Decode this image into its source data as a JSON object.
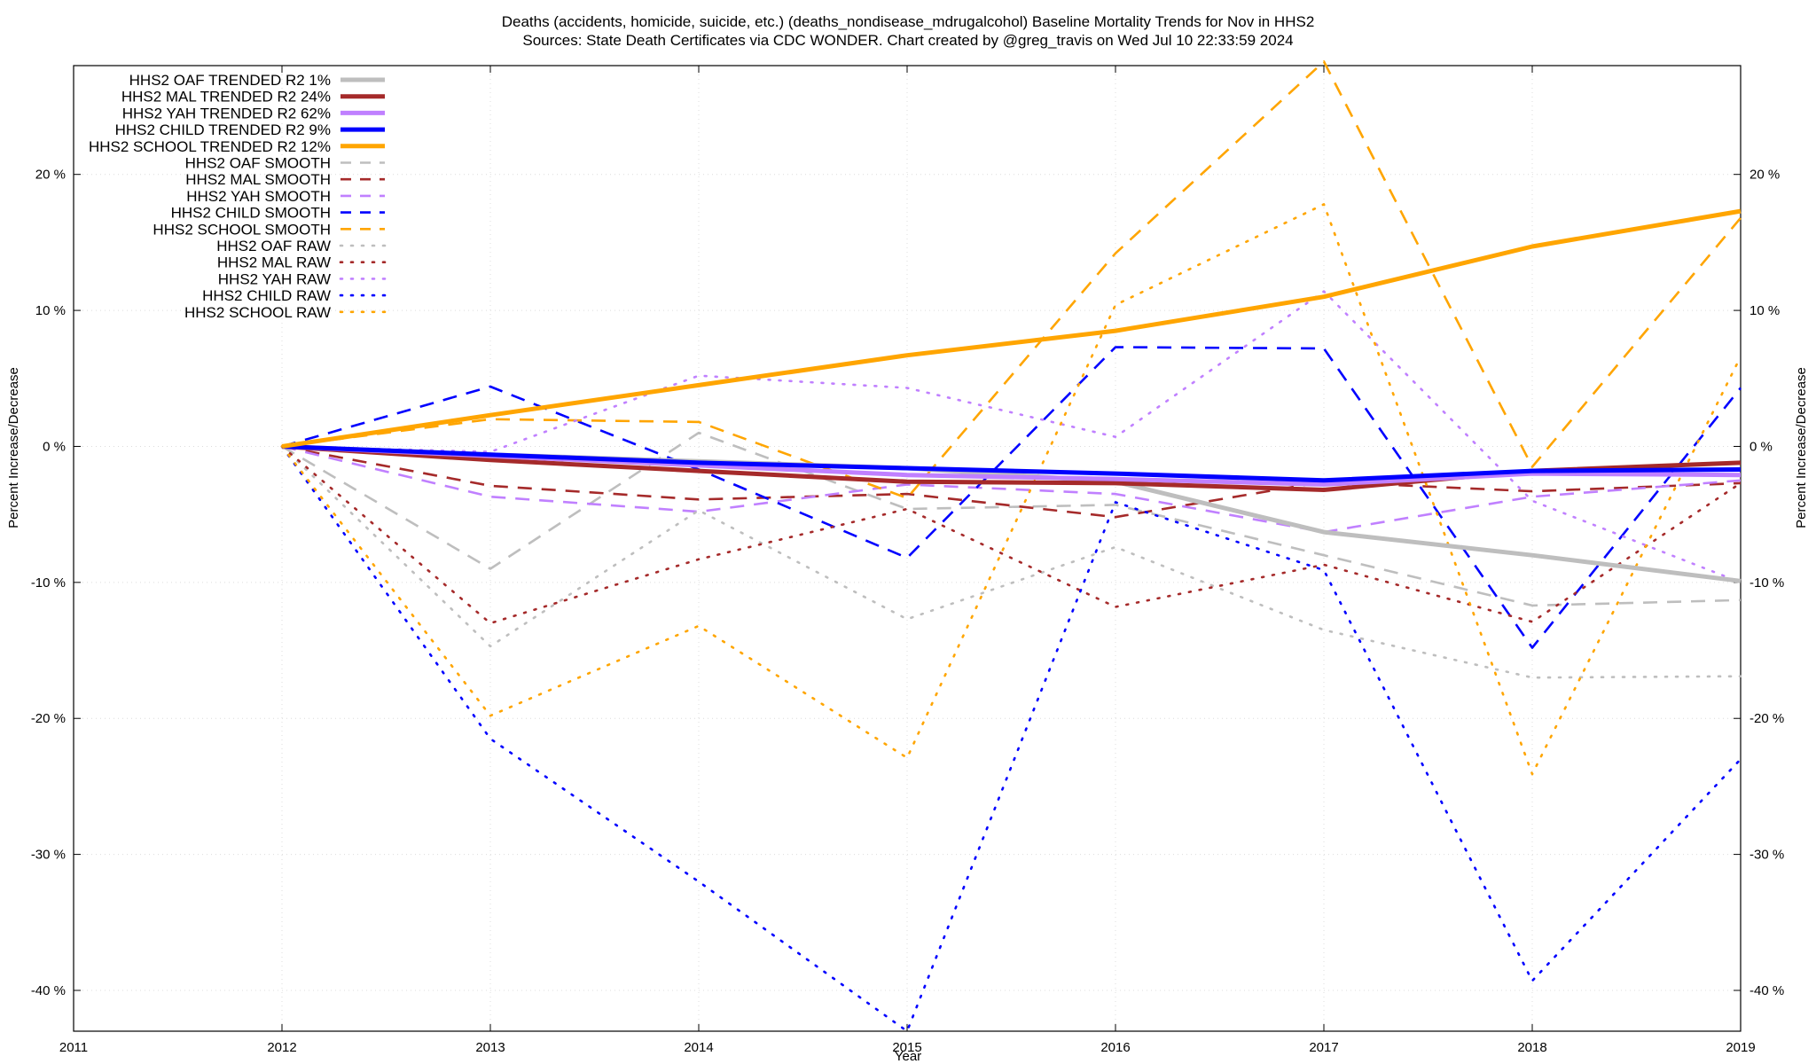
{
  "title_line1": "Deaths (accidents, homicide, suicide, etc.) (deaths_nondisease_mdrugalcohol)  Baseline Mortality Trends for Nov in HHS2",
  "title_line2": "Sources: State Death Certificates via CDC WONDER.                Chart created by @greg_travis on Wed Jul 10 22:33:59 2024",
  "chart_data": {
    "type": "line",
    "title": "Deaths (accidents, homicide, suicide, etc.) (deaths_nondisease_mdrugalcohol)  Baseline Mortality Trends for Nov in HHS2",
    "subtitle": "Sources: State Death Certificates via CDC WONDER.                Chart created by @greg_travis on Wed Jul 10 22:33:59 2024",
    "xlabel": "Year",
    "ylabel": "Percent Increase/Decrease",
    "y2label": "Percent Increase/Decrease",
    "xlim": [
      2011,
      2019
    ],
    "ylim": [
      -43,
      28
    ],
    "xticks": [
      2011,
      2012,
      2013,
      2014,
      2015,
      2016,
      2017,
      2018,
      2019
    ],
    "yticks": [
      -40,
      -30,
      -20,
      -10,
      0,
      10,
      20
    ],
    "ytick_suffix": " %",
    "grid": true,
    "legend_position": "top-left",
    "series": [
      {
        "name": "HHS2 OAF TRENDED R2   1%",
        "style": "solid",
        "color": "#bebebe",
        "x": [
          2012,
          2013,
          2014,
          2015,
          2016,
          2017,
          2018,
          2019
        ],
        "y": [
          0,
          -0.6,
          -1.1,
          -1.6,
          -2.6,
          -6.3,
          -8.0,
          -9.9
        ]
      },
      {
        "name": "HHS2 MAL TRENDED R2  24%",
        "style": "solid",
        "color": "#a52a2a",
        "x": [
          2012,
          2013,
          2014,
          2015,
          2016,
          2017,
          2018,
          2019
        ],
        "y": [
          0,
          -1.0,
          -1.8,
          -2.6,
          -2.7,
          -3.2,
          -1.8,
          -1.2
        ]
      },
      {
        "name": "HHS2 YAH TRENDED R2  62%",
        "style": "solid",
        "color": "#c080ff",
        "x": [
          2012,
          2013,
          2014,
          2015,
          2016,
          2017,
          2018,
          2019
        ],
        "y": [
          0,
          -0.7,
          -1.4,
          -2.1,
          -2.4,
          -2.8,
          -2.0,
          -2.1
        ]
      },
      {
        "name": "HHS2 CHILD TRENDED R2   9%",
        "style": "solid",
        "color": "#0000ff",
        "x": [
          2012,
          2013,
          2014,
          2015,
          2016,
          2017,
          2018,
          2019
        ],
        "y": [
          0,
          -0.6,
          -1.2,
          -1.6,
          -2.0,
          -2.5,
          -1.8,
          -1.7
        ]
      },
      {
        "name": "HHS2 SCHOOL TRENDED R2  12%",
        "style": "solid",
        "color": "#ffa500",
        "x": [
          2012,
          2013,
          2014,
          2015,
          2016,
          2017,
          2018,
          2019
        ],
        "y": [
          0,
          2.3,
          4.5,
          6.7,
          8.5,
          11.0,
          14.7,
          17.3
        ]
      },
      {
        "name": "HHS2 OAF SMOOTH",
        "style": "dashed",
        "color": "#bebebe",
        "x": [
          2012,
          2013,
          2014,
          2015,
          2016,
          2017,
          2018,
          2019
        ],
        "y": [
          0,
          -9.0,
          1.0,
          -4.6,
          -4.3,
          -8.0,
          -11.7,
          -11.3
        ]
      },
      {
        "name": "HHS2 MAL SMOOTH",
        "style": "dashed",
        "color": "#a52a2a",
        "x": [
          2012,
          2013,
          2014,
          2015,
          2016,
          2017,
          2018,
          2019
        ],
        "y": [
          0,
          -2.9,
          -3.9,
          -3.5,
          -5.2,
          -2.6,
          -3.3,
          -2.7
        ]
      },
      {
        "name": "HHS2 YAH SMOOTH",
        "style": "dashed",
        "color": "#c080ff",
        "x": [
          2012,
          2013,
          2014,
          2015,
          2016,
          2017,
          2018,
          2019
        ],
        "y": [
          0,
          -3.7,
          -4.8,
          -2.8,
          -3.5,
          -6.3,
          -3.7,
          -2.5
        ]
      },
      {
        "name": "HHS2 CHILD SMOOTH",
        "style": "dashed",
        "color": "#0000ff",
        "x": [
          2012,
          2013,
          2014,
          2015,
          2016,
          2017,
          2018,
          2019
        ],
        "y": [
          0,
          4.4,
          -1.7,
          -8.2,
          7.3,
          7.2,
          -14.8,
          4.3
        ]
      },
      {
        "name": "HHS2 SCHOOL SMOOTH",
        "style": "dashed",
        "color": "#ffa500",
        "x": [
          2012,
          2013,
          2014,
          2015,
          2016,
          2017,
          2018,
          2019
        ],
        "y": [
          0,
          2.0,
          1.8,
          -3.8,
          14.2,
          28.3,
          -1.5,
          16.8
        ]
      },
      {
        "name": "HHS2 OAF RAW",
        "style": "dotted",
        "color": "#bebebe",
        "x": [
          2012,
          2013,
          2014,
          2015,
          2016,
          2017,
          2018,
          2019
        ],
        "y": [
          0,
          -14.7,
          -4.7,
          -12.7,
          -7.4,
          -13.5,
          -17.0,
          -16.9
        ]
      },
      {
        "name": "HHS2 MAL RAW",
        "style": "dotted",
        "color": "#a52a2a",
        "x": [
          2012,
          2013,
          2014,
          2015,
          2016,
          2017,
          2018,
          2019
        ],
        "y": [
          0,
          -13.0,
          -8.3,
          -4.6,
          -11.8,
          -8.7,
          -12.9,
          -2.7
        ]
      },
      {
        "name": "HHS2 YAH RAW",
        "style": "dotted",
        "color": "#c080ff",
        "x": [
          2012,
          2013,
          2014,
          2015,
          2016,
          2017,
          2018,
          2019
        ],
        "y": [
          0,
          -0.4,
          5.2,
          4.3,
          0.7,
          11.4,
          -4.0,
          -10.0
        ]
      },
      {
        "name": "HHS2 CHILD RAW",
        "style": "dotted",
        "color": "#0000ff",
        "x": [
          2012,
          2013,
          2014,
          2015,
          2016,
          2017,
          2018,
          2019
        ],
        "y": [
          0,
          -21.5,
          -32.0,
          -43.0,
          -4.1,
          -9.1,
          -39.3,
          -23.0
        ]
      },
      {
        "name": "HHS2 SCHOOL RAW",
        "style": "dotted",
        "color": "#ffa500",
        "x": [
          2012,
          2013,
          2014,
          2015,
          2016,
          2017,
          2018,
          2019
        ],
        "y": [
          0,
          -19.8,
          -13.2,
          -22.9,
          10.4,
          17.8,
          -24.1,
          6.6
        ]
      }
    ]
  }
}
